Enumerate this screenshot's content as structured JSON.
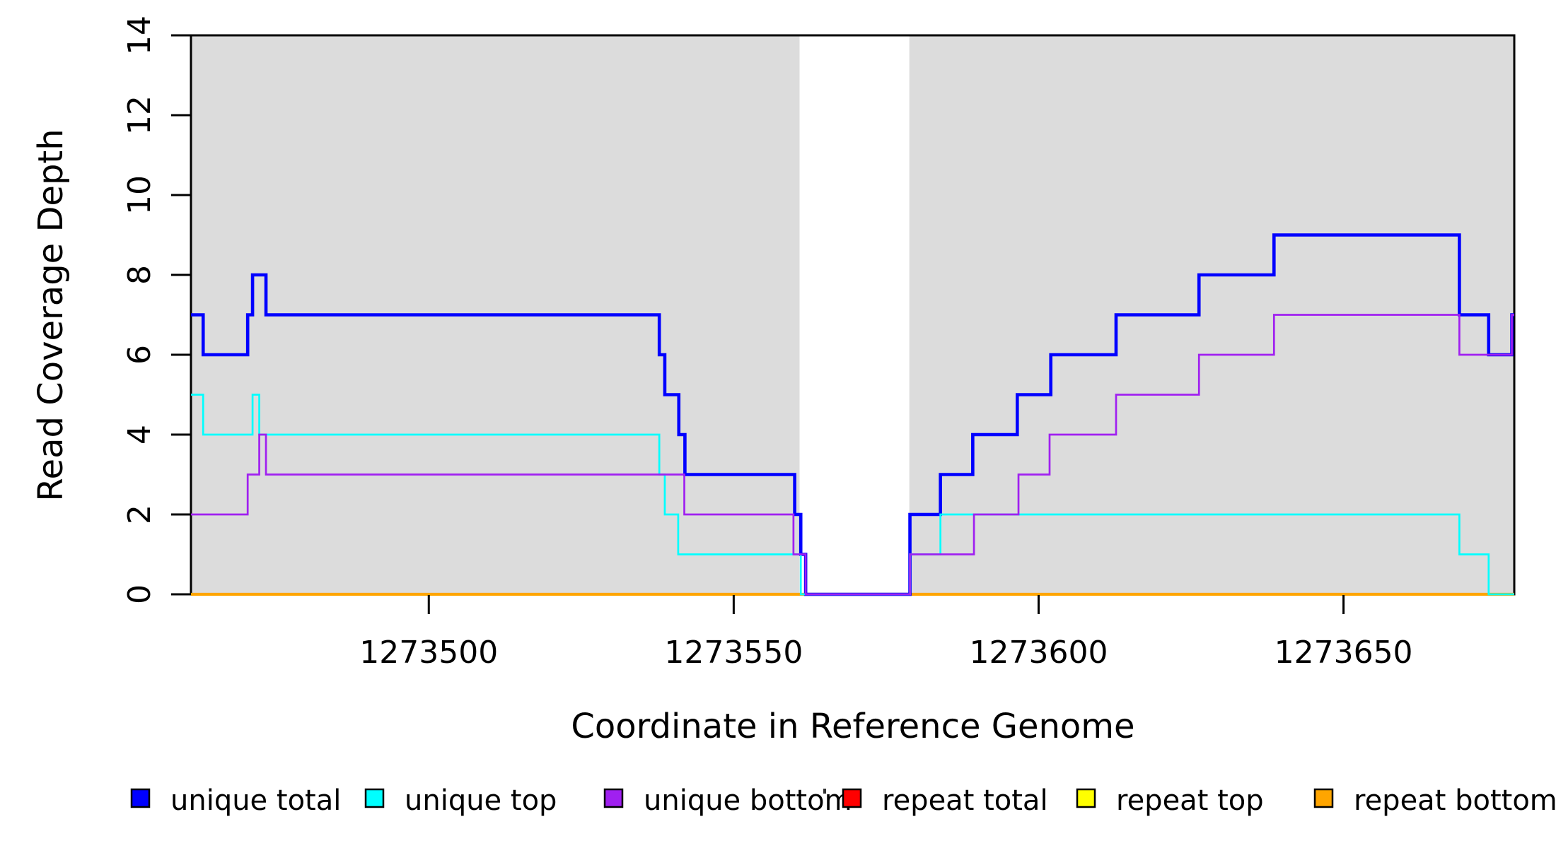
{
  "chart_data": {
    "type": "line",
    "line_style": "step-post",
    "title": "",
    "xlabel": "Coordinate in Reference Genome",
    "ylabel": "Read Coverage Depth",
    "xlim": [
      1273461,
      1273678
    ],
    "ylim": [
      0,
      14
    ],
    "x_ticks": [
      1273500,
      1273550,
      1273600,
      1273650
    ],
    "x_tick_labels": [
      "1273500",
      "1273550",
      "1273600",
      "1273650"
    ],
    "y_ticks": [
      0,
      2,
      4,
      6,
      8,
      10,
      12,
      14
    ],
    "y_tick_labels": [
      "0",
      "2",
      "4",
      "6",
      "8",
      "10",
      "12",
      "14"
    ],
    "grid": false,
    "plot_background": "#ffffff",
    "highlight_color": "#DCDCDC",
    "highlight_regions": [
      {
        "x0": 1273461,
        "x1": 1273560.8
      },
      {
        "x0": 1273578.8,
        "x1": 1273678
      }
    ],
    "legend_position": "bottom",
    "legend": [
      {
        "label": "unique total",
        "color": "#0000FF"
      },
      {
        "label": "unique top",
        "color": "#00FFFF"
      },
      {
        "label": "unique bottom",
        "color": "#A020F0"
      },
      {
        "label": "repeat total",
        "color": "#FF0000"
      },
      {
        "label": "repeat top",
        "color": "#FFFF00"
      },
      {
        "label": "repeat bottom",
        "color": "#FFA500"
      }
    ],
    "series": [
      {
        "name": "repeat total",
        "color": "#FF0000",
        "width": 3.5,
        "steps": [
          [
            1273461,
            0
          ]
        ]
      },
      {
        "name": "repeat top",
        "color": "#FFFF00",
        "width": 3.5,
        "steps": [
          [
            1273461,
            0
          ]
        ]
      },
      {
        "name": "repeat bottom",
        "color": "#FFA500",
        "width": 4.3,
        "steps": [
          [
            1273461,
            0
          ]
        ]
      },
      {
        "name": "unique total",
        "color": "#0000FF",
        "width": 4.6,
        "steps": [
          [
            1273461,
            7
          ],
          [
            1273463,
            6
          ],
          [
            1273470.3,
            7
          ],
          [
            1273471.1,
            8
          ],
          [
            1273473.3,
            7
          ],
          [
            1273537.8,
            6
          ],
          [
            1273538.7,
            5
          ],
          [
            1273541,
            4
          ],
          [
            1273542,
            3
          ],
          [
            1273560,
            2
          ],
          [
            1273561,
            1
          ],
          [
            1273561.8,
            0
          ],
          [
            1273578.9,
            2
          ],
          [
            1273583.9,
            3
          ],
          [
            1273589.2,
            4
          ],
          [
            1273596.5,
            5
          ],
          [
            1273602,
            6
          ],
          [
            1273612.7,
            7
          ],
          [
            1273626.3,
            8
          ],
          [
            1273638.6,
            9
          ],
          [
            1273669,
            7
          ],
          [
            1273673.8,
            6
          ],
          [
            1273677.6,
            7
          ]
        ]
      },
      {
        "name": "unique top",
        "color": "#00FFFF",
        "width": 2.7,
        "steps": [
          [
            1273461,
            5
          ],
          [
            1273463,
            4
          ],
          [
            1273471.1,
            5
          ],
          [
            1273472.2,
            4
          ],
          [
            1273537.8,
            3
          ],
          [
            1273538.7,
            2
          ],
          [
            1273540.9,
            1
          ],
          [
            1273561,
            0
          ],
          [
            1273578.9,
            1
          ],
          [
            1273583.9,
            2
          ],
          [
            1273669,
            1
          ],
          [
            1273673.8,
            0
          ]
        ]
      },
      {
        "name": "unique bottom",
        "color": "#A020F0",
        "width": 2.7,
        "steps": [
          [
            1273461,
            2
          ],
          [
            1273470.3,
            3
          ],
          [
            1273472.2,
            4
          ],
          [
            1273473.3,
            3
          ],
          [
            1273541.9,
            2
          ],
          [
            1273559.8,
            1
          ],
          [
            1273561.8,
            0
          ],
          [
            1273578.9,
            1
          ],
          [
            1273589.4,
            2
          ],
          [
            1273596.7,
            3
          ],
          [
            1273601.8,
            4
          ],
          [
            1273612.7,
            5
          ],
          [
            1273626.3,
            6
          ],
          [
            1273638.6,
            7
          ],
          [
            1273669,
            6
          ],
          [
            1273677.6,
            7
          ]
        ]
      }
    ]
  }
}
